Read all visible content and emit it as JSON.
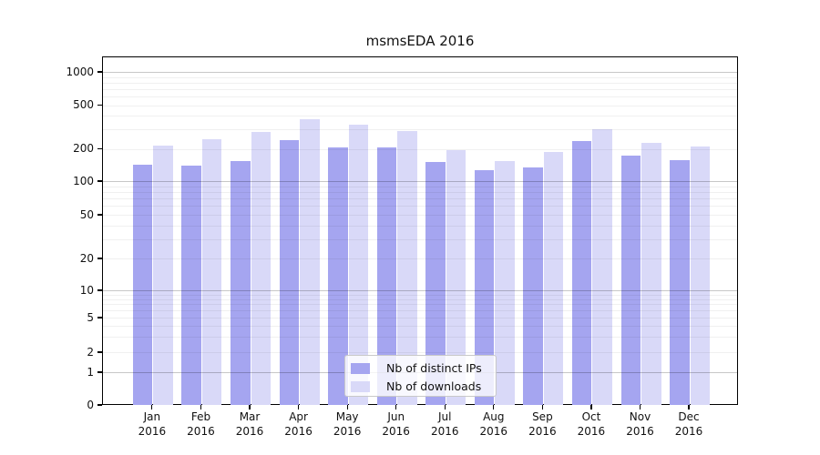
{
  "title": "msmsEDA 2016",
  "chart_data": {
    "type": "bar",
    "title": "msmsEDA 2016",
    "categories": [
      "Jan",
      "Feb",
      "Mar",
      "Apr",
      "May",
      "Jun",
      "Jul",
      "Aug",
      "Sep",
      "Oct",
      "Nov",
      "Dec"
    ],
    "category_year": "2016",
    "series": [
      {
        "name": "Nb of distinct IPs",
        "color": "#a5a5f0",
        "values": [
          141,
          140,
          154,
          238,
          205,
          206,
          152,
          127,
          133,
          236,
          174,
          156
        ]
      },
      {
        "name": "Nb of downloads",
        "color": "#d9d9f8",
        "values": [
          214,
          244,
          286,
          369,
          330,
          291,
          196,
          154,
          186,
          300,
          225,
          209
        ]
      }
    ],
    "yticks": [
      0,
      1,
      2,
      5,
      10,
      20,
      50,
      100,
      200,
      500,
      1000
    ],
    "yscale": "symlog",
    "ylim": [
      0,
      1400
    ],
    "xlabel": "",
    "ylabel": "",
    "grid": true,
    "legend_position": "lower center"
  }
}
